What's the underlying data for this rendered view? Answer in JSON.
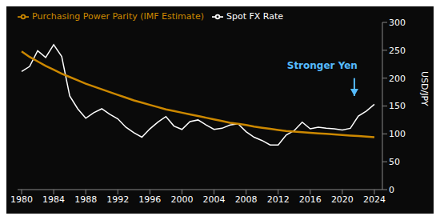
{
  "chart_data": {
    "type": "line",
    "ylabel": "USD/JPY",
    "x": [
      1980,
      1981,
      1982,
      1983,
      1984,
      1985,
      1986,
      1987,
      1988,
      1989,
      1990,
      1991,
      1992,
      1993,
      1994,
      1995,
      1996,
      1997,
      1998,
      1999,
      2000,
      2001,
      2002,
      2003,
      2004,
      2005,
      2006,
      2007,
      2008,
      2009,
      2010,
      2011,
      2012,
      2013,
      2014,
      2015,
      2016,
      2017,
      2018,
      2019,
      2020,
      2021,
      2022,
      2023,
      2024
    ],
    "series": [
      {
        "name": "Spot FX Rate",
        "color": "#ffffff",
        "values": [
          212,
          221,
          249,
          237,
          260,
          239,
          168,
          145,
          128,
          138,
          145,
          135,
          127,
          112,
          102,
          94,
          109,
          121,
          131,
          114,
          108,
          122,
          125,
          116,
          108,
          110,
          116,
          118,
          104,
          94,
          88,
          80,
          80,
          98,
          106,
          121,
          109,
          112,
          110,
          109,
          107,
          110,
          132,
          141,
          153
        ]
      },
      {
        "name": "Purchasing Power Parity (IMF Estimate)",
        "color": "#cc8800",
        "values": [
          248,
          238,
          230,
          222,
          215,
          208,
          202,
          196,
          190,
          185,
          180,
          175,
          170,
          165,
          160,
          156,
          152,
          148,
          144,
          141,
          138,
          135,
          132,
          129,
          126,
          123,
          120,
          118,
          116,
          113,
          111,
          109,
          107,
          105,
          104,
          103,
          102,
          101,
          100,
          99,
          98,
          97,
          96,
          95,
          94
        ]
      }
    ],
    "xlim": [
      1979.5,
      2025
    ],
    "xticks": [
      1980,
      1984,
      1988,
      1992,
      1996,
      2000,
      2004,
      2008,
      2012,
      2016,
      2020,
      2024
    ],
    "ylim": [
      0,
      300
    ],
    "yticks": [
      0,
      50,
      100,
      150,
      200,
      250,
      300
    ],
    "grid": false,
    "legend": "upper left",
    "annotations": [
      {
        "text": "Stronger Yen",
        "x": 2017.5,
        "y": 210,
        "color": "#55bbff",
        "arrow": {
          "x": 2021.5,
          "y_start": 200,
          "y_end": 168
        }
      }
    ]
  }
}
